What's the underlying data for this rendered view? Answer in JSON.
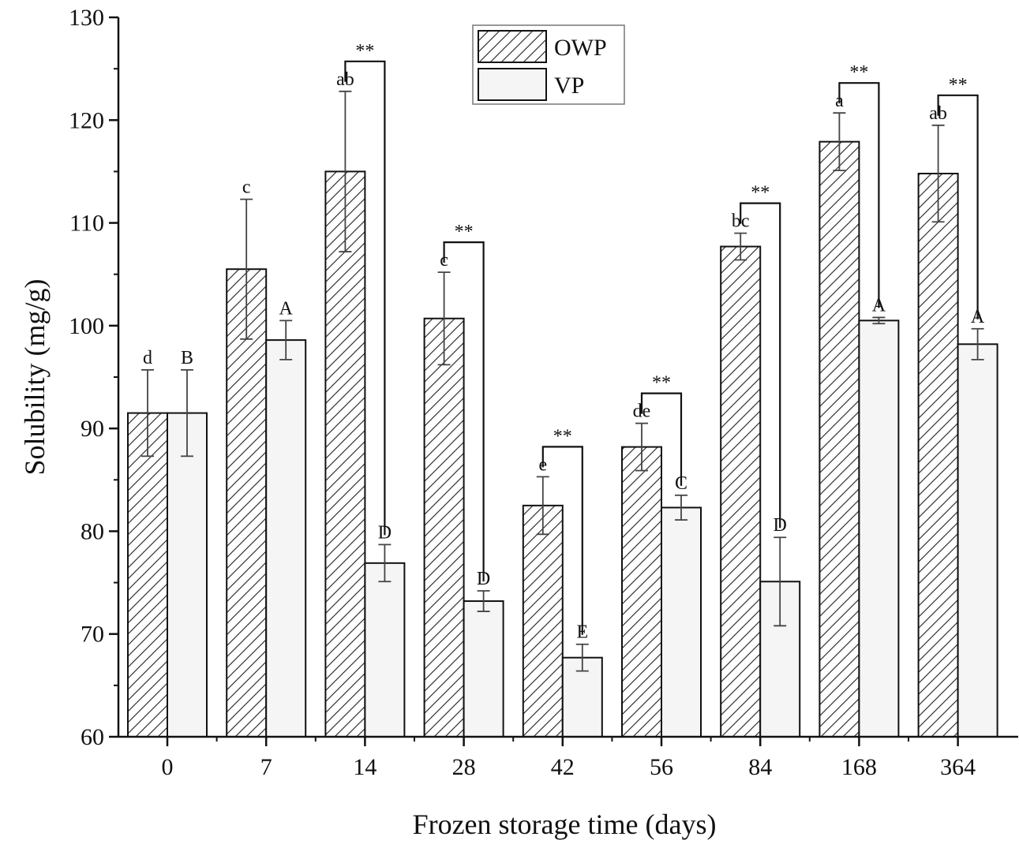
{
  "chart_data": {
    "type": "bar",
    "title": "",
    "xlabel": "Frozen storage time (days)",
    "ylabel": "Solubility (mg/g)",
    "ylim": [
      60,
      130
    ],
    "yticks": [
      60,
      70,
      80,
      90,
      100,
      110,
      120,
      130
    ],
    "categories": [
      "0",
      "7",
      "14",
      "28",
      "42",
      "56",
      "84",
      "168",
      "364"
    ],
    "legend_position": "top-center",
    "grid": false,
    "series": [
      {
        "name": "OWP",
        "pattern": "diagonal-hatch",
        "values": [
          91.5,
          105.5,
          115.0,
          100.7,
          82.5,
          88.2,
          107.7,
          117.9,
          114.8
        ],
        "errors": [
          4.2,
          6.8,
          7.8,
          4.5,
          2.8,
          2.3,
          1.3,
          2.8,
          4.7
        ],
        "labels": [
          "d",
          "c",
          "ab",
          "c",
          "e",
          "de",
          "bc",
          "a",
          "ab"
        ]
      },
      {
        "name": "VP",
        "pattern": "solid",
        "fill": "#f5f5f5",
        "values": [
          91.5,
          98.6,
          76.9,
          73.2,
          67.7,
          82.3,
          75.1,
          100.5,
          98.2
        ],
        "errors": [
          4.2,
          1.9,
          1.8,
          1.0,
          1.3,
          1.2,
          4.3,
          0.3,
          1.5
        ],
        "labels": [
          "B",
          "A",
          "D",
          "D",
          "E",
          "C",
          "D",
          "A",
          "A"
        ]
      }
    ],
    "significance": {
      "marker": "**",
      "categories": [
        "14",
        "28",
        "42",
        "56",
        "84",
        "168",
        "364"
      ]
    }
  }
}
